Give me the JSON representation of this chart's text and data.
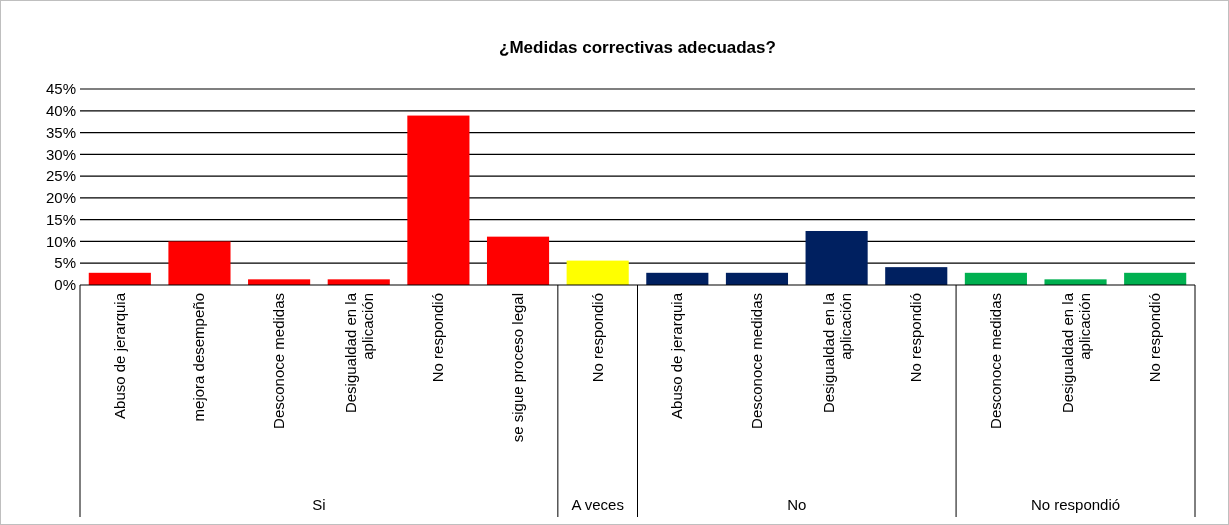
{
  "chart_data": {
    "type": "bar",
    "title": "¿Medidas correctivas adecuadas?",
    "categories": [
      "Abuso de jerarquia",
      "mejora desempeño",
      "Desconoce medidas",
      "Desigualdad en la aplicación",
      "No respondió",
      "se sigue proceso legal",
      "No respondió",
      "Abuso de jerarquia",
      "Desconoce medidas",
      "Desigualdad en la aplicación",
      "No respondió",
      "Desconoce medidas",
      "Desigualdad en la aplicación",
      "No respondió"
    ],
    "values": [
      2.8,
      10,
      1.3,
      1.3,
      38.9,
      11.1,
      5.6,
      2.8,
      2.8,
      12.4,
      4.1,
      2.8,
      1.3,
      2.8
    ],
    "colors": [
      "#ff0000",
      "#ff0000",
      "#ff0000",
      "#ff0000",
      "#ff0000",
      "#ff0000",
      "#ffff00",
      "#002060",
      "#002060",
      "#002060",
      "#002060",
      "#00b050",
      "#00b050",
      "#00b050"
    ],
    "annotations": [
      "Si",
      "A veces",
      "No",
      "No respondió"
    ],
    "ylim": [
      0,
      45
    ],
    "yticks": [
      {
        "value": 0,
        "label": "0%"
      },
      {
        "value": 5,
        "label": "5%"
      },
      {
        "value": 10,
        "label": "10%"
      },
      {
        "value": 15,
        "label": "15%"
      },
      {
        "value": 20,
        "label": "20%"
      },
      {
        "value": 25,
        "label": "25%"
      },
      {
        "value": 30,
        "label": "30%"
      },
      {
        "value": 35,
        "label": "35%"
      },
      {
        "value": 40,
        "label": "40%"
      },
      {
        "value": 45,
        "label": "45%"
      }
    ],
    "grid": true
  }
}
